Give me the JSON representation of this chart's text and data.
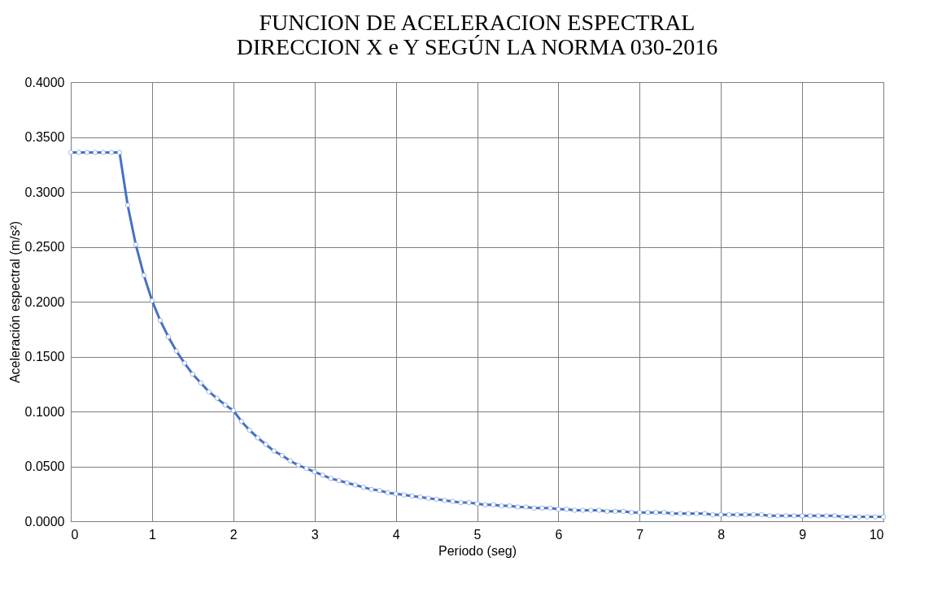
{
  "chart_data": {
    "type": "line",
    "title": [
      "FUNCION DE ACELERACION ESPECTRAL",
      "DIRECCION X e Y SEGÚN LA NORMA 030-2016"
    ],
    "xlabel": "Periodo (seg)",
    "ylabel": "Aceleración espectral (m/s²)",
    "x": [
      0,
      0.1,
      0.2,
      0.3,
      0.4,
      0.5,
      0.6,
      0.7,
      0.8,
      0.9,
      1.0,
      1.1,
      1.2,
      1.3,
      1.4,
      1.5,
      1.6,
      1.7,
      1.8,
      1.9,
      2.0,
      2.1,
      2.2,
      2.3,
      2.4,
      2.5,
      2.6,
      2.7,
      2.8,
      2.9,
      3.0,
      3.1,
      3.2,
      3.3,
      3.4,
      3.5,
      3.6,
      3.7,
      3.8,
      3.9,
      4.0,
      4.1,
      4.2,
      4.3,
      4.4,
      4.5,
      4.6,
      4.7,
      4.8,
      4.9,
      5.0,
      5.1,
      5.2,
      5.3,
      5.4,
      5.5,
      5.6,
      5.7,
      5.8,
      5.9,
      6.0,
      6.1,
      6.2,
      6.3,
      6.4,
      6.5,
      6.6,
      6.7,
      6.8,
      6.9,
      7.0,
      7.1,
      7.2,
      7.3,
      7.4,
      7.5,
      7.6,
      7.7,
      7.8,
      7.9,
      8.0,
      8.1,
      8.2,
      8.3,
      8.4,
      8.5,
      8.6,
      8.7,
      8.8,
      8.9,
      9.0,
      9.1,
      9.2,
      9.3,
      9.4,
      9.5,
      9.6,
      9.7,
      9.8,
      9.9,
      10.0
    ],
    "series": [
      {
        "color": "#4472c4",
        "values": [
          0.336,
          0.336,
          0.336,
          0.336,
          0.336,
          0.336,
          0.336,
          0.288,
          0.252,
          0.224,
          0.201,
          0.183,
          0.168,
          0.155,
          0.144,
          0.134,
          0.126,
          0.118,
          0.112,
          0.106,
          0.101,
          0.091,
          0.083,
          0.076,
          0.07,
          0.064,
          0.06,
          0.055,
          0.051,
          0.048,
          0.045,
          0.042,
          0.039,
          0.037,
          0.035,
          0.033,
          0.031,
          0.029,
          0.028,
          0.026,
          0.025,
          0.024,
          0.023,
          0.022,
          0.021,
          0.02,
          0.019,
          0.018,
          0.017,
          0.017,
          0.016,
          0.015,
          0.015,
          0.014,
          0.014,
          0.013,
          0.013,
          0.012,
          0.012,
          0.012,
          0.011,
          0.011,
          0.01,
          0.01,
          0.01,
          0.01,
          0.009,
          0.009,
          0.009,
          0.008,
          0.008,
          0.008,
          0.008,
          0.008,
          0.007,
          0.007,
          0.007,
          0.007,
          0.007,
          0.006,
          0.006,
          0.006,
          0.006,
          0.006,
          0.006,
          0.006,
          0.005,
          0.005,
          0.005,
          0.005,
          0.005,
          0.005,
          0.005,
          0.005,
          0.005,
          0.004,
          0.004,
          0.004,
          0.004,
          0.004,
          0.004
        ]
      }
    ],
    "xlim": [
      0,
      10
    ],
    "xticks": [
      0,
      1,
      2,
      3,
      4,
      5,
      6,
      7,
      8,
      9,
      10
    ],
    "ylim": [
      0,
      0.4
    ],
    "yticks": [
      {
        "value": 0,
        "label": "0.0000"
      },
      {
        "value": 0.05,
        "label": "0.0500"
      },
      {
        "value": 0.1,
        "label": "0.1000"
      },
      {
        "value": 0.15,
        "label": "0.1500"
      },
      {
        "value": 0.2,
        "label": "0.2000"
      },
      {
        "value": 0.25,
        "label": "0.2500"
      },
      {
        "value": 0.3,
        "label": "0.3000"
      },
      {
        "value": 0.35,
        "label": "0.3500"
      },
      {
        "value": 0.4,
        "label": "0.4000"
      }
    ],
    "grid": true,
    "marker": "circle",
    "line_style": "solid"
  }
}
